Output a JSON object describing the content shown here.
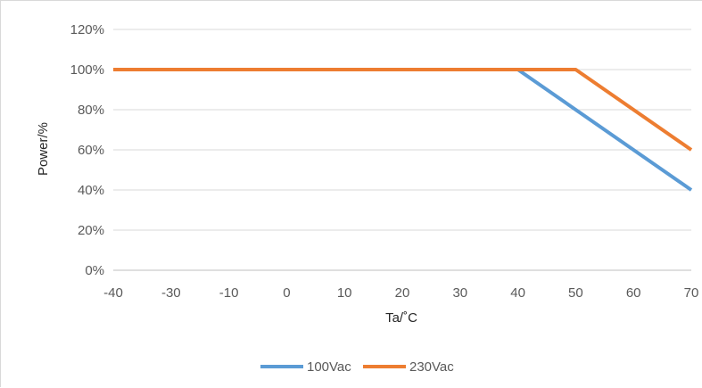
{
  "chart_data": {
    "type": "line",
    "title": "",
    "xlabel": "Ta/˚C",
    "ylabel": "Power/%",
    "x_ticks": [
      "-40",
      "-30",
      "-10",
      "0",
      "10",
      "20",
      "30",
      "40",
      "50",
      "60",
      "70"
    ],
    "y_ticks": [
      "0%",
      "20%",
      "40%",
      "60%",
      "80%",
      "100%",
      "120%"
    ],
    "ylim": [
      0,
      120
    ],
    "grid": true,
    "legend_position": "bottom",
    "series": [
      {
        "name": "100Vac",
        "color": "#5b9bd5",
        "points": [
          [
            0,
            100
          ],
          [
            7,
            100
          ],
          [
            10,
            40
          ]
        ]
      },
      {
        "name": "230Vac",
        "color": "#ed7d31",
        "points": [
          [
            0,
            100
          ],
          [
            8,
            100
          ],
          [
            10,
            60
          ]
        ]
      }
    ]
  }
}
